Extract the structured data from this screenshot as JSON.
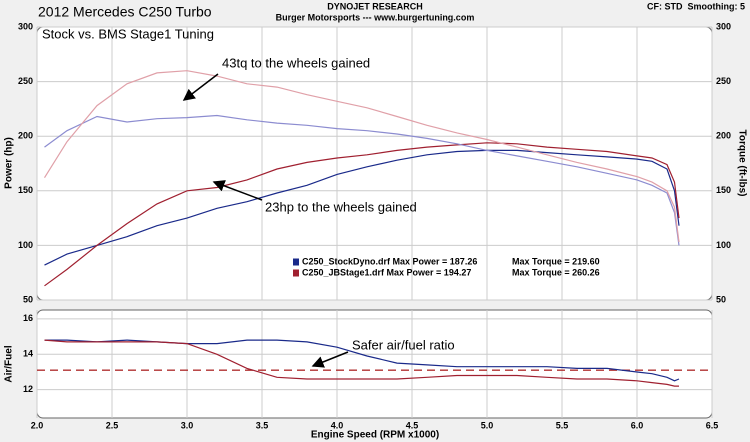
{
  "chart_data": [
    {
      "type": "line",
      "source": "DYNOJET RESEARCH",
      "source_detail": "Burger Motorsports --- www.burgertuning.com",
      "settings": "CF: STD  Smoothing: 5",
      "title": "2012 Mercedes C250 Turbo",
      "subtitle": "Stock vs. BMS Stage1 Tuning",
      "ylabel": "Power (hp)",
      "y2label": "Torque (ft-lbs)",
      "annotations": [
        "43tq to the wheels gained",
        "23hp to the wheels gained"
      ],
      "legend": [
        {
          "text": "C250_StockDyno.drf Max Power = 187.26",
          "text2": "Max Torque = 219.60",
          "color": "#1a2a8a"
        },
        {
          "text": "C250_JBStage1.drf Max Power = 194.27",
          "text2": "Max Torque = 260.26",
          "color": "#a02030"
        }
      ],
      "xlim": [
        2.0,
        6.5
      ],
      "ylim": [
        50,
        300
      ],
      "yticks": [
        50,
        100,
        150,
        200,
        250,
        300
      ],
      "y2lim": [
        50,
        300
      ],
      "y2ticks": [
        50,
        100,
        150,
        200,
        250,
        300
      ],
      "x": [
        2.05,
        2.2,
        2.4,
        2.6,
        2.8,
        3.0,
        3.2,
        3.4,
        3.6,
        3.8,
        4.0,
        4.2,
        4.4,
        4.6,
        4.8,
        5.0,
        5.2,
        5.4,
        5.6,
        5.8,
        6.0,
        6.1,
        6.2,
        6.25,
        6.28
      ],
      "series": [
        {
          "color": "#1a2a8a",
          "values": [
            82,
            92,
            100,
            108,
            118,
            125,
            134,
            140,
            148,
            155,
            165,
            172,
            178,
            183,
            186,
            187,
            187,
            185,
            183,
            181,
            179,
            177,
            170,
            150,
            118
          ]
        },
        {
          "color": "#a02030",
          "values": [
            63,
            78,
            100,
            120,
            138,
            150,
            153,
            160,
            170,
            176,
            180,
            183,
            187,
            190,
            192,
            194,
            193,
            190,
            188,
            186,
            182,
            180,
            174,
            158,
            125
          ]
        },
        {
          "color": "#8c8cd0",
          "axis": "y2",
          "values": [
            190,
            205,
            218,
            213,
            216,
            217,
            219,
            215,
            212,
            210,
            207,
            205,
            202,
            198,
            193,
            187,
            182,
            177,
            172,
            166,
            160,
            155,
            148,
            130,
            100
          ]
        },
        {
          "color": "#e0a0a8",
          "axis": "y2",
          "values": [
            162,
            195,
            228,
            248,
            258,
            260,
            255,
            248,
            245,
            238,
            232,
            226,
            218,
            210,
            203,
            197,
            190,
            183,
            176,
            170,
            163,
            158,
            150,
            135,
            103
          ]
        }
      ]
    },
    {
      "type": "line",
      "ylabel": "Air/Fuel",
      "xlabel": "Engine Speed (RPM x1000)",
      "annotations": [
        "Safer air/fuel ratio"
      ],
      "xlim": [
        2.0,
        6.5
      ],
      "xticks": [
        {
          "value": 2,
          "label": "2.0"
        },
        2.5,
        {
          "value": 3,
          "label": "3.0"
        },
        3.5,
        {
          "value": 4,
          "label": "4.0"
        },
        4.5,
        {
          "value": 5,
          "label": "5.0"
        },
        5.5,
        {
          "value": 6,
          "label": "6.0"
        },
        6.5
      ],
      "ylim": [
        10.4,
        16.5
      ],
      "yticks": [
        12,
        14,
        16
      ],
      "reference_line": {
        "value": 13.1,
        "color": "#b03030"
      },
      "x": [
        2.05,
        2.2,
        2.4,
        2.6,
        2.8,
        3.0,
        3.2,
        3.4,
        3.6,
        3.8,
        4.0,
        4.2,
        4.4,
        4.6,
        4.8,
        5.0,
        5.2,
        5.4,
        5.6,
        5.8,
        6.0,
        6.1,
        6.2,
        6.25,
        6.28
      ],
      "series": [
        {
          "color": "#1a2a8a",
          "values": [
            14.8,
            14.8,
            14.7,
            14.8,
            14.7,
            14.6,
            14.6,
            14.8,
            14.8,
            14.7,
            14.4,
            13.9,
            13.5,
            13.4,
            13.3,
            13.3,
            13.3,
            13.3,
            13.2,
            13.2,
            13.0,
            12.9,
            12.7,
            12.5,
            12.6
          ]
        },
        {
          "color": "#a02030",
          "values": [
            14.8,
            14.7,
            14.7,
            14.7,
            14.7,
            14.6,
            14.0,
            13.2,
            12.7,
            12.6,
            12.6,
            12.6,
            12.6,
            12.7,
            12.8,
            12.8,
            12.8,
            12.7,
            12.6,
            12.6,
            12.5,
            12.4,
            12.3,
            12.2,
            12.2
          ]
        }
      ]
    }
  ]
}
